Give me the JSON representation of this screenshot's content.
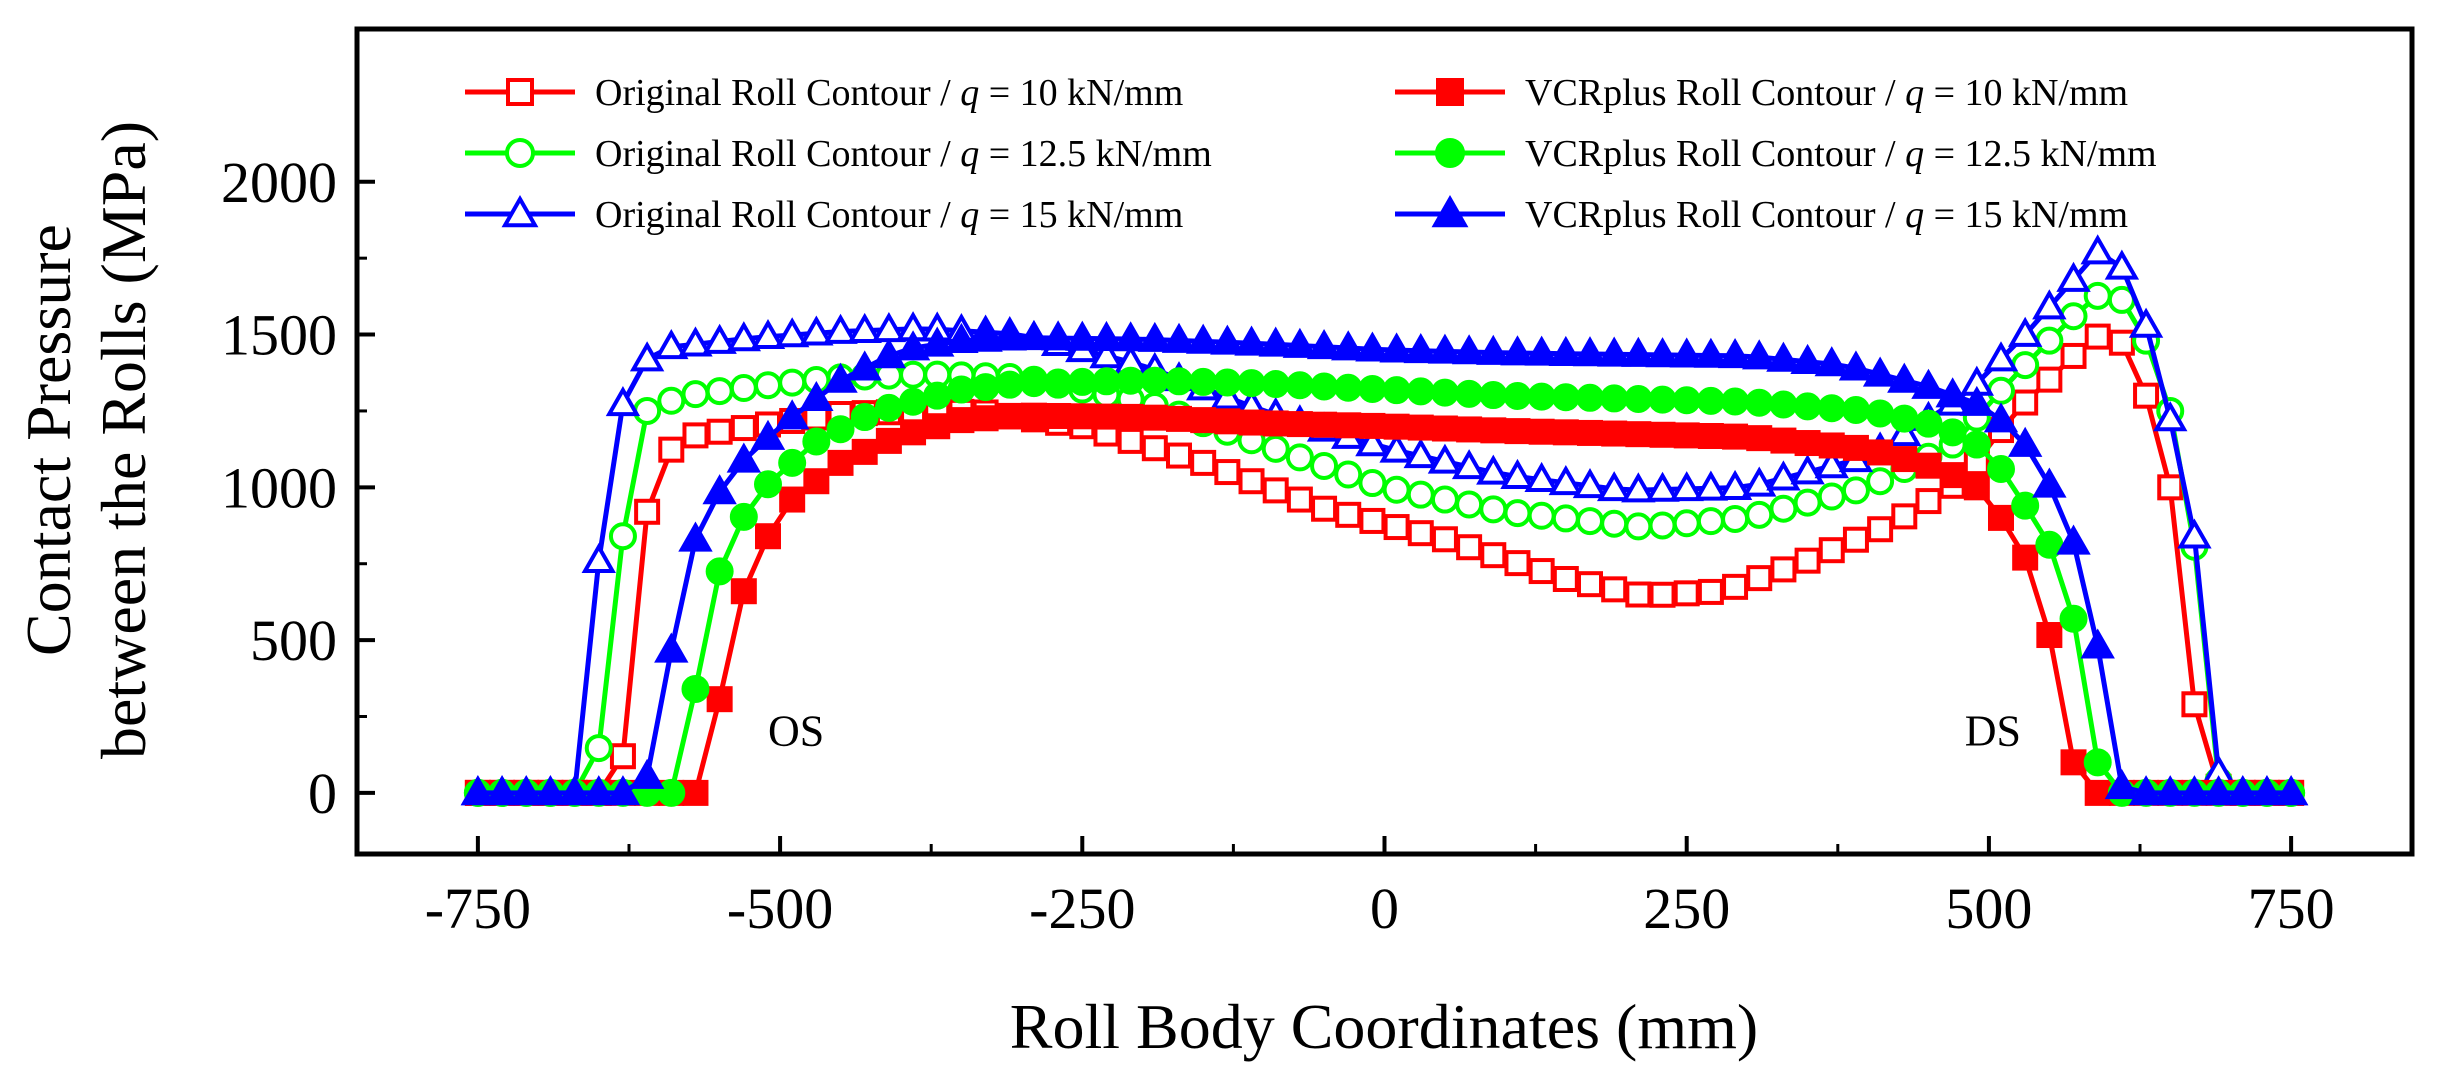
{
  "chart_data": {
    "type": "line",
    "title": "",
    "xlabel": "Roll Body Coordinates (mm)",
    "ylabel_lines": [
      "Contact Pressure",
      "between the Rolls (MPa)"
    ],
    "xlim": [
      -850,
      850
    ],
    "ylim": [
      -200,
      2500
    ],
    "xticks": [
      -750,
      -500,
      -250,
      0,
      250,
      500,
      750
    ],
    "xtick_labels": [
      "-750",
      "-500",
      "-250",
      "0",
      "250",
      "500",
      "750"
    ],
    "yticks": [
      0,
      500,
      1000,
      1500,
      2000
    ],
    "ytick_labels": [
      "0",
      "500",
      "1000",
      "1500",
      "2000"
    ],
    "grid": false,
    "legend_position": "top",
    "annotations": [
      {
        "text": "OS",
        "x": -510,
        "y": 155
      },
      {
        "text": "DS",
        "x": 480,
        "y": 155
      }
    ],
    "series": [
      {
        "legend_prefix": "Original Roll Contour / ",
        "legend_q": "q",
        "legend_suffix": " = 10 kN/mm",
        "color": "#ff0000",
        "marker": "square",
        "filled": false,
        "anchors": [
          [
            -757,
            0
          ],
          [
            -645,
            0
          ],
          [
            -630,
            120
          ],
          [
            -615,
            830
          ],
          [
            -600,
            1100
          ],
          [
            -570,
            1170
          ],
          [
            -520,
            1200
          ],
          [
            -450,
            1240
          ],
          [
            -380,
            1250
          ],
          [
            -330,
            1245
          ],
          [
            -250,
            1200
          ],
          [
            -150,
            1080
          ],
          [
            -50,
            930
          ],
          [
            50,
            830
          ],
          [
            150,
            700
          ],
          [
            215,
            645
          ],
          [
            280,
            660
          ],
          [
            350,
            760
          ],
          [
            420,
            880
          ],
          [
            480,
            1030
          ],
          [
            520,
            1240
          ],
          [
            560,
            1390
          ],
          [
            585,
            1490
          ],
          [
            600,
            1500
          ],
          [
            615,
            1460
          ],
          [
            630,
            1300
          ],
          [
            650,
            1000
          ],
          [
            670,
            290
          ],
          [
            685,
            30
          ],
          [
            700,
            0
          ],
          [
            757,
            0
          ]
        ]
      },
      {
        "legend_prefix": "Original Roll Contour / ",
        "legend_q": "q",
        "legend_suffix": " = 12.5 kN/mm",
        "color": "#00ff00",
        "marker": "circle",
        "filled": false,
        "anchors": [
          [
            -757,
            0
          ],
          [
            -655,
            0
          ],
          [
            -640,
            440
          ],
          [
            -625,
            1040
          ],
          [
            -610,
            1250
          ],
          [
            -580,
            1300
          ],
          [
            -520,
            1330
          ],
          [
            -450,
            1360
          ],
          [
            -380,
            1370
          ],
          [
            -300,
            1360
          ],
          [
            -200,
            1280
          ],
          [
            -100,
            1140
          ],
          [
            0,
            1000
          ],
          [
            100,
            920
          ],
          [
            215,
            870
          ],
          [
            300,
            900
          ],
          [
            400,
            1000
          ],
          [
            470,
            1140
          ],
          [
            520,
            1360
          ],
          [
            560,
            1520
          ],
          [
            585,
            1620
          ],
          [
            600,
            1640
          ],
          [
            615,
            1600
          ],
          [
            640,
            1400
          ],
          [
            660,
            1100
          ],
          [
            678,
            570
          ],
          [
            690,
            40
          ],
          [
            705,
            0
          ],
          [
            757,
            0
          ]
        ]
      },
      {
        "legend_prefix": "Original Roll Contour / ",
        "legend_q": "q",
        "legend_suffix": " = 15 kN/mm",
        "color": "#0000ff",
        "marker": "triangle",
        "filled": false,
        "anchors": [
          [
            -757,
            0
          ],
          [
            -665,
            0
          ],
          [
            -650,
            760
          ],
          [
            -635,
            1210
          ],
          [
            -620,
            1400
          ],
          [
            -590,
            1460
          ],
          [
            -520,
            1490
          ],
          [
            -450,
            1510
          ],
          [
            -380,
            1520
          ],
          [
            -300,
            1500
          ],
          [
            -200,
            1400
          ],
          [
            -100,
            1250
          ],
          [
            0,
            1130
          ],
          [
            100,
            1040
          ],
          [
            200,
            990
          ],
          [
            300,
            1000
          ],
          [
            400,
            1100
          ],
          [
            480,
            1300
          ],
          [
            530,
            1500
          ],
          [
            570,
            1680
          ],
          [
            590,
            1770
          ],
          [
            605,
            1760
          ],
          [
            625,
            1600
          ],
          [
            645,
            1320
          ],
          [
            670,
            840
          ],
          [
            688,
            80
          ],
          [
            700,
            0
          ],
          [
            757,
            0
          ]
        ]
      },
      {
        "legend_prefix": "VCRplus Roll Contour / ",
        "legend_q": "q",
        "legend_suffix": " = 10 kN/mm",
        "color": "#ff0000",
        "marker": "square",
        "filled": true,
        "anchors": [
          [
            -757,
            0
          ],
          [
            -570,
            0
          ],
          [
            -555,
            190
          ],
          [
            -540,
            540
          ],
          [
            -520,
            780
          ],
          [
            -490,
            960
          ],
          [
            -450,
            1080
          ],
          [
            -400,
            1170
          ],
          [
            -350,
            1220
          ],
          [
            -300,
            1235
          ],
          [
            -200,
            1230
          ],
          [
            -100,
            1210
          ],
          [
            0,
            1200
          ],
          [
            100,
            1185
          ],
          [
            200,
            1175
          ],
          [
            300,
            1165
          ],
          [
            400,
            1125
          ],
          [
            460,
            1060
          ],
          [
            490,
            1000
          ],
          [
            520,
            850
          ],
          [
            540,
            690
          ],
          [
            555,
            430
          ],
          [
            570,
            100
          ],
          [
            585,
            0
          ],
          [
            757,
            0
          ]
        ]
      },
      {
        "legend_prefix": "VCRplus Roll Contour / ",
        "legend_q": "q",
        "legend_suffix": " = 12.5 kN/mm",
        "color": "#00ff00",
        "marker": "circle",
        "filled": true,
        "anchors": [
          [
            -757,
            0
          ],
          [
            -590,
            0
          ],
          [
            -575,
            210
          ],
          [
            -560,
            600
          ],
          [
            -540,
            850
          ],
          [
            -510,
            1010
          ],
          [
            -470,
            1150
          ],
          [
            -420,
            1250
          ],
          [
            -350,
            1320
          ],
          [
            -300,
            1340
          ],
          [
            -200,
            1350
          ],
          [
            -100,
            1340
          ],
          [
            0,
            1320
          ],
          [
            100,
            1300
          ],
          [
            200,
            1290
          ],
          [
            300,
            1280
          ],
          [
            400,
            1250
          ],
          [
            460,
            1200
          ],
          [
            500,
            1120
          ],
          [
            530,
            940
          ],
          [
            555,
            780
          ],
          [
            575,
            500
          ],
          [
            590,
            100
          ],
          [
            605,
            0
          ],
          [
            757,
            0
          ]
        ]
      },
      {
        "legend_prefix": "VCRplus Roll Contour / ",
        "legend_q": "q",
        "legend_suffix": " = 15 kN/mm",
        "color": "#0000ff",
        "marker": "triangle",
        "filled": true,
        "anchors": [
          [
            -757,
            0
          ],
          [
            -615,
            0
          ],
          [
            -600,
            160
          ],
          [
            -585,
            620
          ],
          [
            -565,
            900
          ],
          [
            -535,
            1070
          ],
          [
            -500,
            1200
          ],
          [
            -450,
            1350
          ],
          [
            -400,
            1450
          ],
          [
            -350,
            1480
          ],
          [
            -300,
            1490
          ],
          [
            -200,
            1485
          ],
          [
            -100,
            1470
          ],
          [
            0,
            1450
          ],
          [
            100,
            1440
          ],
          [
            200,
            1435
          ],
          [
            300,
            1430
          ],
          [
            380,
            1400
          ],
          [
            450,
            1330
          ],
          [
            500,
            1260
          ],
          [
            540,
            1100
          ],
          [
            570,
            820
          ],
          [
            590,
            480
          ],
          [
            605,
            30
          ],
          [
            620,
            0
          ],
          [
            757,
            0
          ]
        ]
      }
    ]
  }
}
